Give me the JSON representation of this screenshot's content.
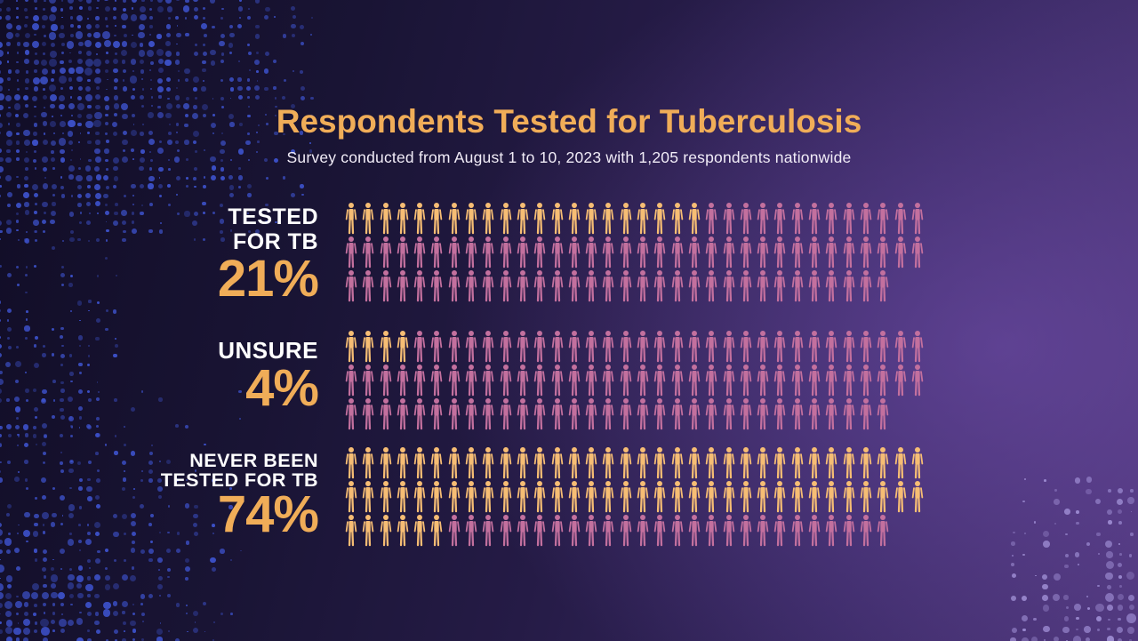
{
  "colors": {
    "accent_orange": "#f0ad58",
    "icon_highlight": "#f6bd74",
    "icon_muted": "#c3709e",
    "background_dark": "#110d26",
    "background_light": "#4a3475",
    "dots_blue": "#3d52cc",
    "dots_lavender": "#9d8cd2",
    "text_white": "#ffffff"
  },
  "chart_data": {
    "type": "pictogram",
    "title": "Respondents Tested for Tuberculosis",
    "subtitle": "Survey conducted from August 1 to 10, 2023 with 1,205 respondents nationwide",
    "unit": "percent of respondents (1 person icon = 1%)",
    "total_respondents": "1,205",
    "survey_period": "August 1 to 10, 2023",
    "icons_per_category": 100,
    "icons_per_row": [
      34,
      34,
      32
    ],
    "categories": [
      {
        "label_lines": [
          "TESTED",
          "FOR TB"
        ],
        "value": 21,
        "value_label": "21%"
      },
      {
        "label_lines": [
          "UNSURE"
        ],
        "value": 4,
        "value_label": "4%"
      },
      {
        "label_lines": [
          "NEVER BEEN",
          "TESTED FOR TB"
        ],
        "value": 74,
        "value_label": "74%"
      }
    ],
    "legend": {
      "highlighted_icons": "respondents in category (orange)",
      "muted_icons": "remaining respondents (pink)"
    }
  }
}
